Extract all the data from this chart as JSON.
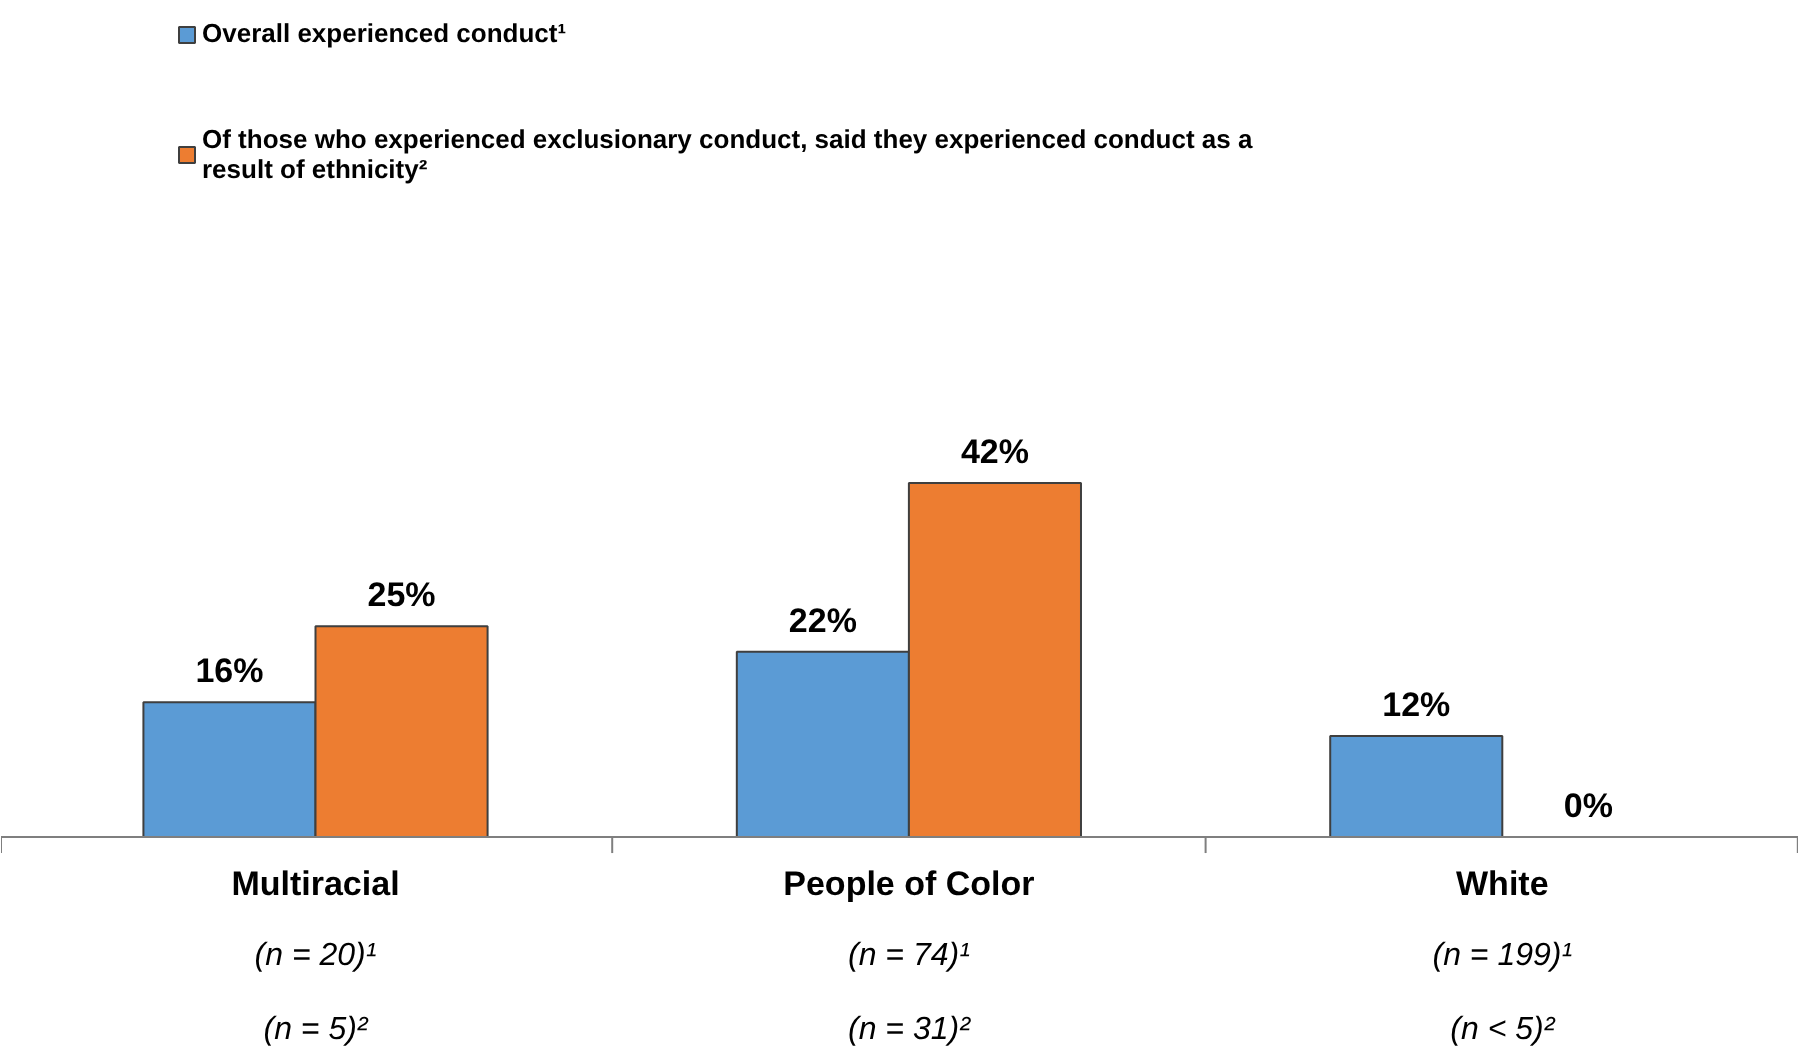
{
  "chart_data": {
    "type": "bar",
    "categories": [
      "Multiracial",
      "People of Color",
      "White"
    ],
    "annotations": [
      "(n = 20)¹",
      "(n = 74)¹",
      "(n = 199)¹",
      "(n = 5)²",
      "(n = 31)²",
      "(n < 5)²"
    ],
    "series": [
      {
        "name": "Overall experienced conduct¹",
        "color": "#5b9bd5",
        "values": [
          16,
          22,
          12
        ],
        "value_labels": [
          "16%",
          "22%",
          "12%"
        ]
      },
      {
        "name": "Of those who experienced exclusionary conduct, said they experienced conduct as a result of ethnicity²",
        "color": "#ed7d31",
        "values": [
          25,
          42,
          0
        ],
        "value_labels": [
          "25%",
          "42%",
          "0%"
        ]
      }
    ],
    "legend": "top left"
  }
}
